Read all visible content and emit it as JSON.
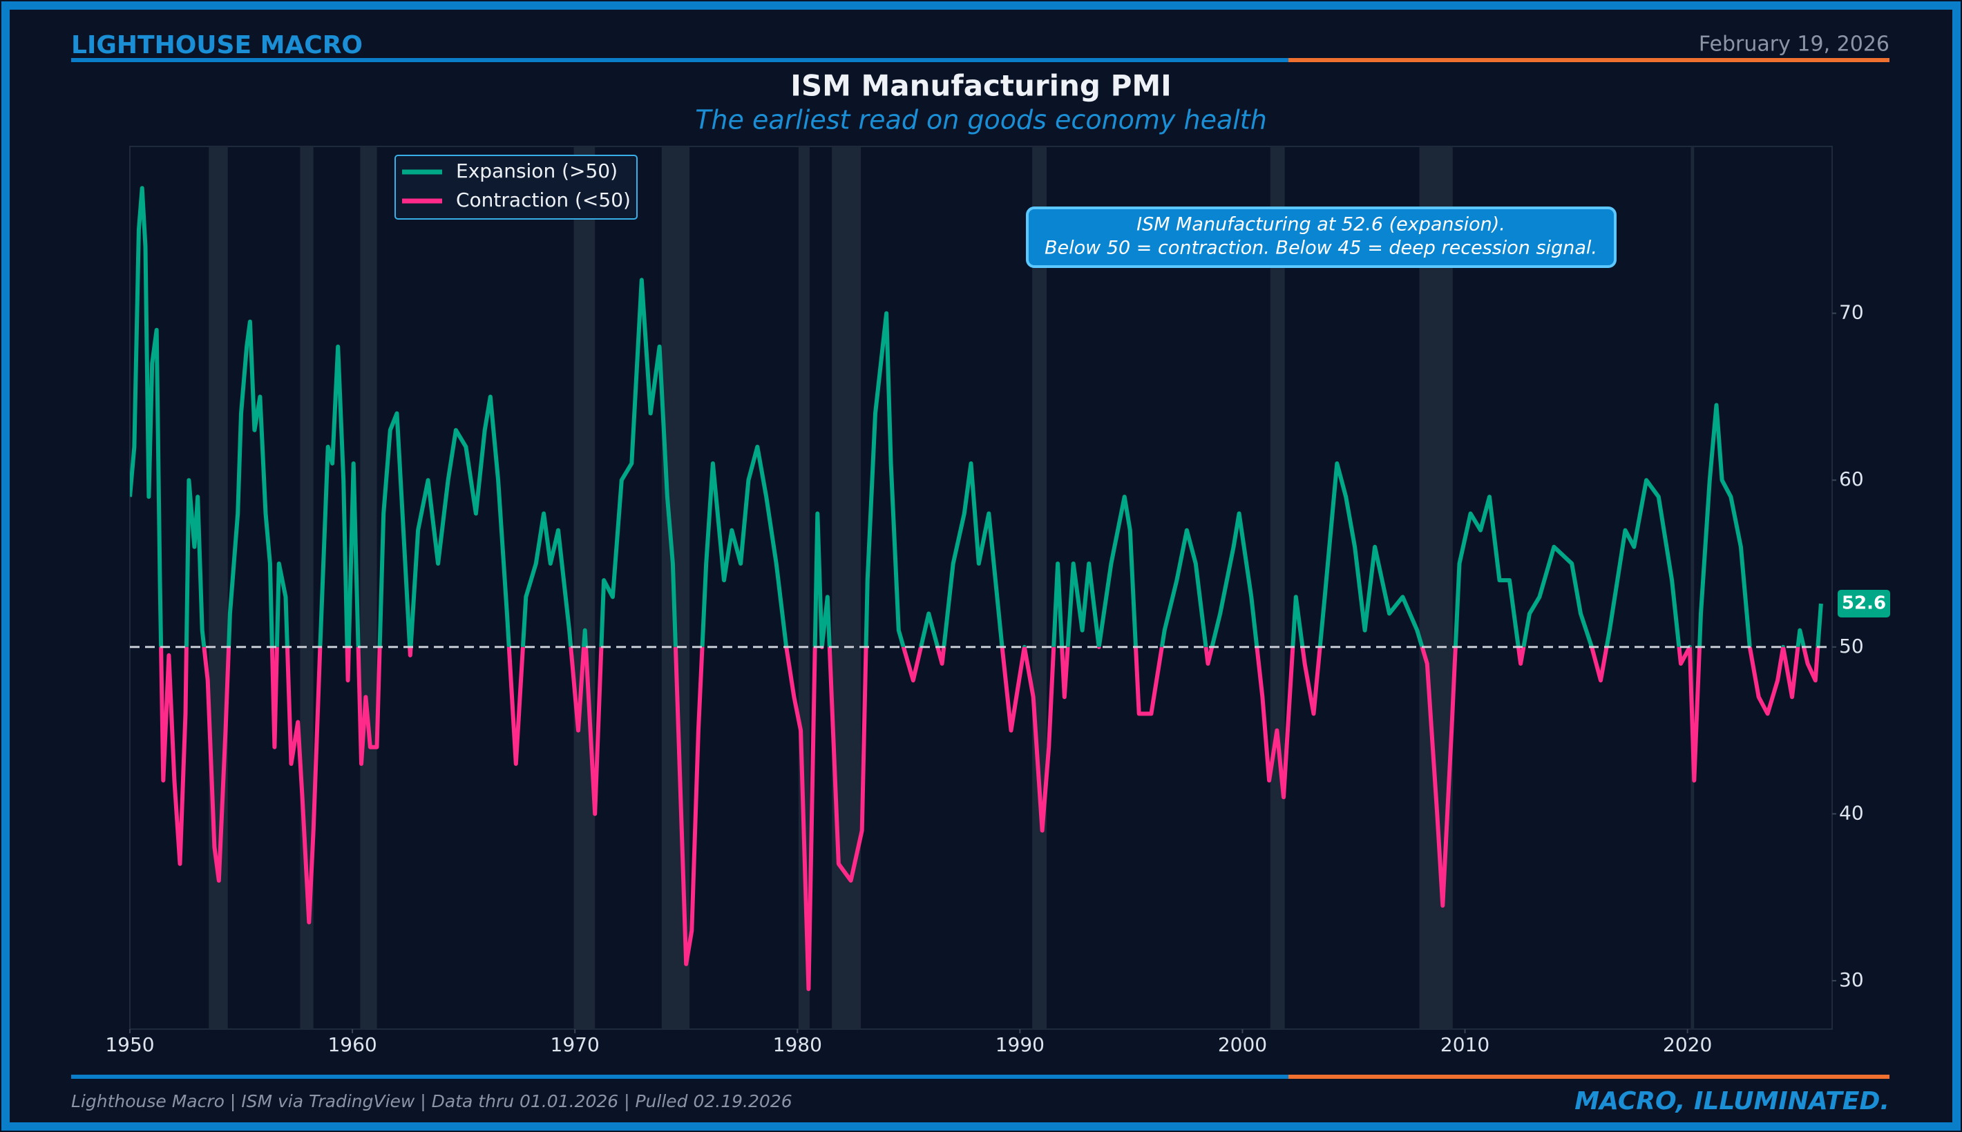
{
  "header": {
    "brand": "LIGHTHOUSE MACRO",
    "date": "February 19, 2026"
  },
  "footer": {
    "source": "Lighthouse Macro | ISM via TradingView | Data thru 01.01.2026 | Pulled 02.19.2026",
    "tagline": "MACRO, ILLUMINATED."
  },
  "chart_data": {
    "type": "line",
    "title": "ISM Manufacturing PMI",
    "subtitle": "The earliest read on goods economy health",
    "annotation": [
      "ISM Manufacturing at 52.6 (expansion).",
      "Below 50 = contraction. Below 45 = deep recession signal."
    ],
    "legend": [
      {
        "name": "Expansion (>50)",
        "color": "#00a887"
      },
      {
        "name": "Contraction (<50)",
        "color": "#ff2a8a"
      }
    ],
    "threshold": 50,
    "xlim": [
      1950,
      2026.5
    ],
    "ylim": [
      27.1,
      80
    ],
    "xticks": [
      1950,
      1960,
      1970,
      1980,
      1990,
      2000,
      2010,
      2020
    ],
    "yticks": [
      30,
      40,
      50,
      60,
      70
    ],
    "recessions": [
      [
        1953.55,
        1954.4
      ],
      [
        1957.65,
        1958.25
      ],
      [
        1960.35,
        1961.1
      ],
      [
        1969.95,
        1970.9
      ],
      [
        1973.9,
        1975.15
      ],
      [
        1980.05,
        1980.55
      ],
      [
        1981.55,
        1982.85
      ],
      [
        1990.55,
        1991.2
      ],
      [
        2001.25,
        2001.9
      ],
      [
        2007.95,
        2009.45
      ],
      [
        2020.15,
        2020.3
      ]
    ],
    "x": [
      1950.0,
      1950.2,
      1950.4,
      1950.55,
      1950.7,
      1950.85,
      1951.0,
      1951.2,
      1951.35,
      1951.5,
      1951.75,
      1952.0,
      1952.25,
      1952.5,
      1952.65,
      1952.9,
      1953.05,
      1953.25,
      1953.5,
      1953.8,
      1954.0,
      1954.3,
      1954.5,
      1954.85,
      1955.0,
      1955.25,
      1955.4,
      1955.6,
      1955.85,
      1956.1,
      1956.3,
      1956.5,
      1956.7,
      1957.0,
      1957.25,
      1957.55,
      1957.75,
      1958.05,
      1958.25,
      1958.55,
      1958.9,
      1959.1,
      1959.35,
      1959.6,
      1959.8,
      1960.05,
      1960.4,
      1960.6,
      1960.8,
      1961.1,
      1961.4,
      1961.7,
      1962.0,
      1962.25,
      1962.6,
      1962.95,
      1963.4,
      1963.85,
      1964.3,
      1964.65,
      1965.1,
      1965.55,
      1965.95,
      1966.2,
      1966.55,
      1966.95,
      1967.35,
      1967.8,
      1968.25,
      1968.6,
      1968.9,
      1969.25,
      1969.75,
      1970.15,
      1970.45,
      1970.9,
      1971.3,
      1971.7,
      1972.1,
      1972.55,
      1973.0,
      1973.4,
      1973.8,
      1974.15,
      1974.4,
      1974.65,
      1975.0,
      1975.25,
      1975.55,
      1975.9,
      1976.2,
      1976.7,
      1977.05,
      1977.45,
      1977.8,
      1978.2,
      1978.6,
      1979.05,
      1979.5,
      1979.85,
      1980.15,
      1980.5,
      1980.9,
      1981.1,
      1981.35,
      1981.85,
      1982.4,
      1982.9,
      1983.15,
      1983.5,
      1984.0,
      1984.2,
      1984.55,
      1985.2,
      1985.9,
      1986.5,
      1987.0,
      1987.5,
      1987.8,
      1988.15,
      1988.6,
      1989.2,
      1989.6,
      1990.2,
      1990.6,
      1991.0,
      1991.3,
      1991.7,
      1992.0,
      1992.4,
      1992.8,
      1993.1,
      1993.55,
      1994.1,
      1994.7,
      1994.95,
      1995.35,
      1995.9,
      1996.5,
      1997.05,
      1997.5,
      1997.9,
      1998.45,
      1999.0,
      1999.6,
      1999.85,
      2000.4,
      2000.9,
      2001.2,
      2001.55,
      2001.85,
      2002.4,
      2002.8,
      2003.2,
      2003.7,
      2004.25,
      2004.65,
      2005.05,
      2005.5,
      2005.95,
      2006.6,
      2007.2,
      2007.85,
      2008.3,
      2008.75,
      2009.0,
      2009.4,
      2009.75,
      2010.25,
      2010.7,
      2011.1,
      2011.55,
      2012.0,
      2012.5,
      2012.9,
      2013.35,
      2014.0,
      2014.8,
      2015.2,
      2015.7,
      2016.1,
      2016.5,
      2017.2,
      2017.6,
      2018.15,
      2018.7,
      2019.3,
      2019.7,
      2020.1,
      2020.3,
      2020.6,
      2021.0,
      2021.3,
      2021.55,
      2021.95,
      2022.4,
      2022.8,
      2023.2,
      2023.6,
      2024.05,
      2024.3,
      2024.7,
      2025.05,
      2025.4,
      2025.75,
      2026.0
    ],
    "values": [
      59,
      62,
      75,
      77.5,
      74,
      59,
      67,
      69,
      54,
      42,
      49.5,
      42,
      37,
      46,
      60,
      56,
      59,
      51,
      48,
      38,
      36,
      45,
      52,
      58,
      64,
      68,
      69.5,
      63,
      65,
      58,
      55,
      44,
      55,
      53,
      43,
      45.5,
      41,
      33.5,
      39,
      50,
      62,
      61,
      68,
      60,
      48,
      61,
      43,
      47,
      44,
      44,
      58,
      63,
      64,
      58,
      49.5,
      57,
      60,
      55,
      60,
      63,
      62,
      58,
      63,
      65,
      60,
      52,
      43,
      53,
      55,
      58,
      55,
      57,
      51,
      45,
      51,
      40,
      54,
      53,
      60,
      61,
      72,
      64,
      68,
      59,
      55,
      45,
      31,
      33,
      45,
      55,
      61,
      54,
      57,
      55,
      60,
      62,
      59,
      55,
      50,
      47,
      45,
      29.5,
      58,
      50,
      53,
      37,
      36,
      39,
      54,
      64,
      70,
      61,
      51,
      48,
      52,
      49,
      55,
      58,
      61,
      55,
      58,
      50,
      45,
      50,
      47,
      39,
      44,
      55,
      47,
      55,
      51,
      55,
      50,
      55,
      59,
      57,
      46,
      46,
      51,
      54,
      57,
      55,
      49,
      52,
      56,
      58,
      53,
      47,
      42,
      45,
      41,
      53,
      49,
      46,
      53,
      61,
      59,
      56,
      51,
      56,
      52,
      53,
      51,
      49,
      40,
      34.5,
      45,
      55,
      58,
      57,
      59,
      54,
      54,
      49,
      52,
      53,
      56,
      55,
      52,
      50,
      48,
      51,
      57,
      56,
      60,
      59,
      54,
      49,
      50,
      42,
      52,
      60,
      64.5,
      60,
      59,
      56,
      50,
      47,
      46,
      48,
      50,
      47,
      51,
      49,
      48,
      52.6
    ]
  }
}
